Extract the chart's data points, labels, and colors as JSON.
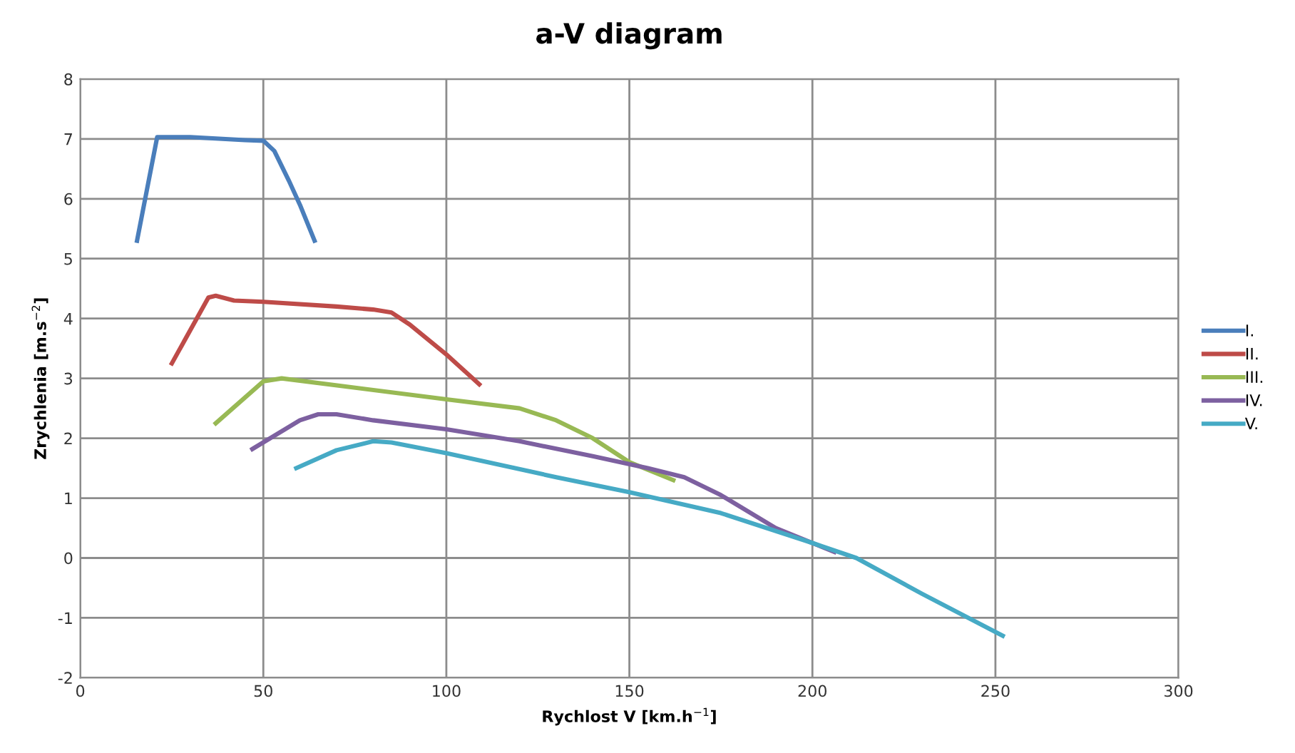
{
  "chart_data": {
    "type": "line",
    "title": "a-V diagram",
    "xlabel": "Rychlost V [km.h$^{−1}$]",
    "ylabel": "Zrychlenia [m.s$^{−2}$]",
    "xlim": [
      0,
      300
    ],
    "xticks": [
      0,
      50,
      100,
      150,
      200,
      250,
      300
    ],
    "ylim": [
      -2,
      8
    ],
    "yticks": [
      -2,
      -1,
      0,
      1,
      2,
      3,
      4,
      5,
      6,
      7,
      8
    ],
    "grid": true,
    "legend": "right",
    "marker": "none",
    "line_style": "solid",
    "series": [
      {
        "name": "I.",
        "color": "#4a7ebb",
        "x": [
          15.5,
          21,
          30,
          45,
          50,
          53,
          57,
          60,
          64
        ],
        "values": [
          5.3,
          7.03,
          7.03,
          6.98,
          6.97,
          6.8,
          6.3,
          5.9,
          5.3
        ]
      },
      {
        "name": "II.",
        "color": "#be4b48",
        "x": [
          25,
          35,
          37,
          42,
          50,
          70,
          80,
          85,
          90,
          100,
          109
        ],
        "values": [
          3.25,
          4.35,
          4.38,
          4.3,
          4.28,
          4.2,
          4.15,
          4.1,
          3.9,
          3.4,
          2.9
        ]
      },
      {
        "name": "III.",
        "color": "#98b954",
        "x": [
          37,
          50,
          55,
          100,
          120,
          130,
          140,
          150,
          162
        ],
        "values": [
          2.25,
          2.95,
          3.0,
          2.65,
          2.5,
          2.3,
          2.0,
          1.6,
          1.3
        ]
      },
      {
        "name": "IV.",
        "color": "#7d60a0",
        "x": [
          47,
          60,
          65,
          70,
          80,
          100,
          120,
          140,
          155,
          165,
          175,
          190,
          206
        ],
        "values": [
          1.82,
          2.3,
          2.4,
          2.4,
          2.3,
          2.15,
          1.95,
          1.7,
          1.5,
          1.35,
          1.05,
          0.5,
          0.1
        ]
      },
      {
        "name": "V.",
        "color": "#46aac5",
        "x": [
          59,
          70,
          80,
          85,
          100,
          130,
          150,
          175,
          200,
          212,
          230,
          252
        ],
        "values": [
          1.5,
          1.8,
          1.95,
          1.93,
          1.75,
          1.35,
          1.1,
          0.75,
          0.25,
          0,
          -0.6,
          -1.3
        ]
      }
    ]
  }
}
